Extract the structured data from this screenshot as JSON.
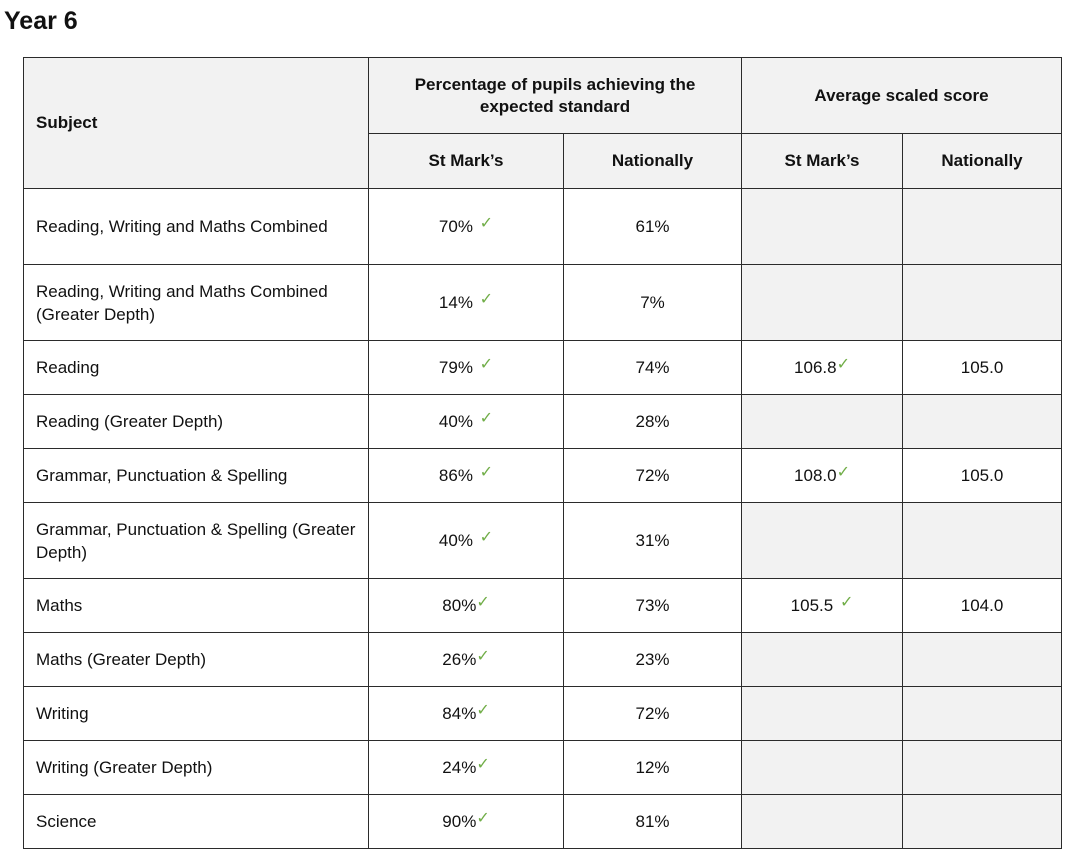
{
  "page": {
    "title": "Year 6"
  },
  "colors": {
    "tick": "#70ad47",
    "header_bg": "#f2f2f2",
    "empty_cell_bg": "#f2f2f2"
  },
  "icons": {
    "achieved": "check-mark-icon"
  },
  "table": {
    "headers": {
      "subject": "Subject",
      "group_percentage": "Percentage of pupils achieving the expected standard",
      "group_scaled": "Average scaled score",
      "pct_school": "St Mark’s",
      "pct_national": "Nationally",
      "scaled_school": "St Mark’s",
      "scaled_national": "Nationally"
    },
    "tick_glyph": "✓",
    "rows": [
      {
        "subject": "Reading, Writing and Maths Combined",
        "pct_school": "70%",
        "pct_national": "61%",
        "scaled_school": "",
        "scaled_national": ""
      },
      {
        "subject": "Reading, Writing and Maths Combined (Greater Depth)",
        "pct_school": "14%",
        "pct_national": "7%",
        "scaled_school": "",
        "scaled_national": ""
      },
      {
        "subject": "Reading",
        "pct_school": "79%",
        "pct_national": "74%",
        "scaled_school": "106.8",
        "scaled_national": "105.0"
      },
      {
        "subject": "Reading (Greater Depth)",
        "pct_school": "40%",
        "pct_national": "28%",
        "scaled_school": "",
        "scaled_national": ""
      },
      {
        "subject": "Grammar, Punctuation & Spelling",
        "pct_school": "86%",
        "pct_national": "72%",
        "scaled_school": "108.0",
        "scaled_national": "105.0"
      },
      {
        "subject": "Grammar, Punctuation & Spelling (Greater Depth)",
        "pct_school": "40%",
        "pct_national": "31%",
        "scaled_school": "",
        "scaled_national": ""
      },
      {
        "subject": "Maths",
        "pct_school": "80%",
        "pct_national": "73%",
        "scaled_school": "105.5",
        "scaled_national": "104.0"
      },
      {
        "subject": "Maths (Greater Depth)",
        "pct_school": "26%",
        "pct_national": "23%",
        "scaled_school": "",
        "scaled_national": ""
      },
      {
        "subject": "Writing",
        "pct_school": "84%",
        "pct_national": "72%",
        "scaled_school": "",
        "scaled_national": ""
      },
      {
        "subject": "Writing (Greater Depth)",
        "pct_school": "24%",
        "pct_national": "12%",
        "scaled_school": "",
        "scaled_national": ""
      },
      {
        "subject": "Science",
        "pct_school": "90%",
        "pct_national": "81%",
        "scaled_school": "",
        "scaled_national": ""
      }
    ]
  }
}
